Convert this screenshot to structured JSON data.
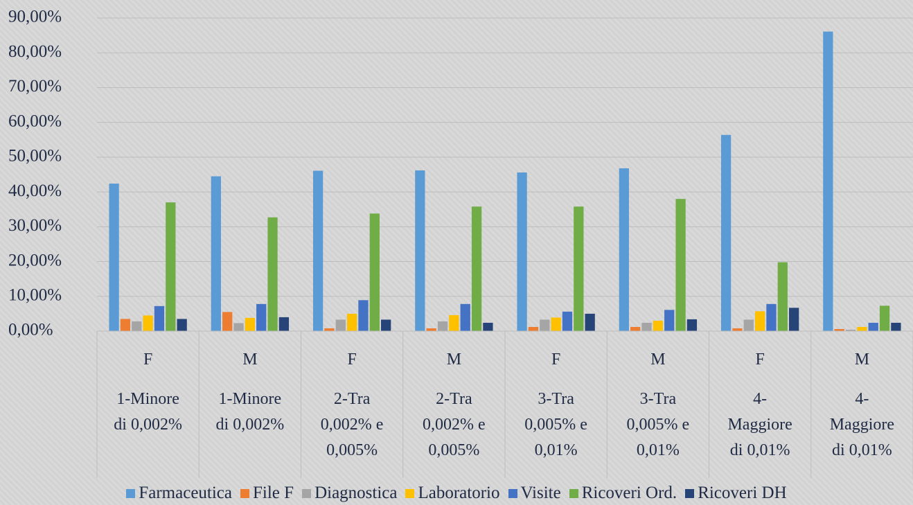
{
  "chart_data": {
    "type": "bar",
    "categories": [
      "F",
      "M",
      "F",
      "M",
      "F",
      "M",
      "F",
      "M"
    ],
    "category_groups": [
      "1-Minore di 0,002%",
      "1-Minore di 0,002%",
      "2-Tra 0,002% e 0,005%",
      "2-Tra 0,002% e 0,005%",
      "3-Tra 0,005% e 0,01%",
      "3-Tra 0,005% e 0,01%",
      "4-Maggiore di 0,01%",
      "4-Maggiore di 0,01%"
    ],
    "series": [
      {
        "name": "Farmaceutica",
        "color": "#5b9bd5",
        "values": [
          42.4,
          44.5,
          46.1,
          46.2,
          45.6,
          46.8,
          56.4,
          86.1
        ]
      },
      {
        "name": "File F",
        "color": "#ed7d31",
        "values": [
          3.5,
          5.5,
          0.8,
          0.8,
          1.2,
          1.2,
          0.8,
          0.6
        ]
      },
      {
        "name": "Diagnostica",
        "color": "#a5a5a5",
        "values": [
          2.8,
          2.3,
          3.3,
          2.8,
          3.3,
          2.4,
          3.3,
          0.4
        ]
      },
      {
        "name": "Laboratorio",
        "color": "#ffc000",
        "values": [
          4.5,
          3.8,
          5.0,
          4.6,
          3.9,
          3.0,
          5.7,
          1.2
        ]
      },
      {
        "name": "Visite",
        "color": "#4472c4",
        "values": [
          7.2,
          7.8,
          8.9,
          7.8,
          5.6,
          6.1,
          7.8,
          2.4
        ]
      },
      {
        "name": "Ricoveri Ord.",
        "color": "#70ad47",
        "values": [
          37.0,
          32.7,
          33.8,
          35.8,
          35.8,
          38.0,
          19.8,
          7.3
        ]
      },
      {
        "name": "Ricoveri DH",
        "color": "#264478",
        "values": [
          3.5,
          4.0,
          3.3,
          2.4,
          5.0,
          3.4,
          6.7,
          2.4
        ]
      }
    ],
    "ylim": [
      0,
      90
    ],
    "yticks": [
      {
        "value": 0,
        "label": "0,00%"
      },
      {
        "value": 10,
        "label": "10,00%"
      },
      {
        "value": 20,
        "label": "20,00%"
      },
      {
        "value": 30,
        "label": "30,00%"
      },
      {
        "value": 40,
        "label": "40,00%"
      },
      {
        "value": 50,
        "label": "50,00%"
      },
      {
        "value": 60,
        "label": "60,00%"
      },
      {
        "value": 70,
        "label": "70,00%"
      },
      {
        "value": 80,
        "label": "80,00%"
      },
      {
        "value": 90,
        "label": "90,00%"
      }
    ],
    "grid": true,
    "legend": "bottom"
  }
}
